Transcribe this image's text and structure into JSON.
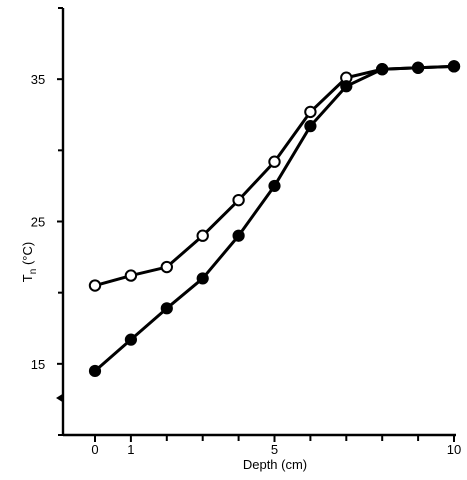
{
  "chart_data": {
    "type": "line",
    "title": "",
    "xlabel": "Depth (cm)",
    "ylabel_main": "T",
    "ylabel_sub": "n",
    "ylabel_unit": " (°C)",
    "xlim": [
      -0.9,
      10.2
    ],
    "ylim": [
      10,
      40
    ],
    "x_ticks": [
      0,
      1,
      5,
      10
    ],
    "x_minor_ticks": [
      2,
      3,
      4,
      6,
      7,
      8,
      9
    ],
    "y_ticks": [
      15,
      25,
      35
    ],
    "y_minor_ticks": [
      10,
      20,
      30,
      40
    ],
    "grid": false,
    "legend": "none",
    "marker": {
      "x": -0.9,
      "y": 12.6
    },
    "series": [
      {
        "marker": "open-circle",
        "x": [
          0,
          1,
          2,
          3,
          4,
          5,
          6,
          7,
          8,
          9,
          10
        ],
        "y": [
          20.5,
          21.2,
          21.8,
          24.0,
          26.5,
          29.2,
          32.7,
          35.1,
          35.7,
          35.8,
          35.9
        ]
      },
      {
        "marker": "filled-circle",
        "x": [
          0,
          1,
          2,
          3,
          4,
          5,
          6,
          7,
          8,
          9,
          10
        ],
        "y": [
          14.5,
          16.7,
          18.9,
          21.0,
          24.0,
          27.5,
          31.7,
          34.5,
          35.7,
          35.8,
          35.9
        ]
      }
    ]
  }
}
